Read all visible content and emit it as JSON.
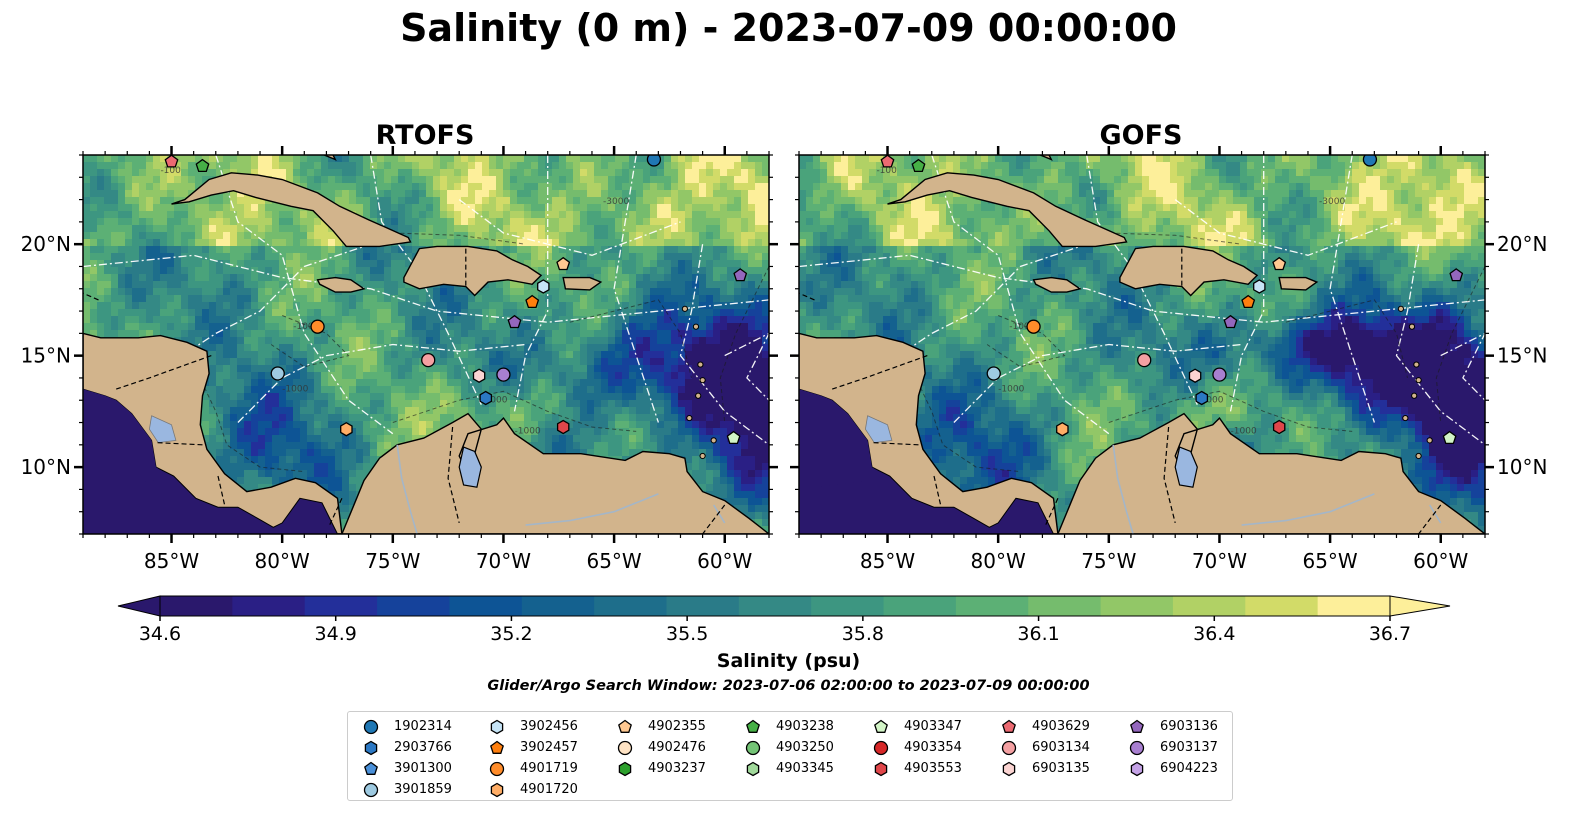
{
  "title": "Salinity (0 m) - 2023-07-09 00:00:00",
  "panels": [
    {
      "title": "RTOFS",
      "field": "rtofs"
    },
    {
      "title": "GOFS",
      "field": "gofs"
    }
  ],
  "axes": {
    "x_ticks": [
      "85°W",
      "80°W",
      "75°W",
      "70°W",
      "65°W",
      "60°W"
    ],
    "x_values": [
      -85,
      -80,
      -75,
      -70,
      -65,
      -60
    ],
    "y_ticks": [
      "10°N",
      "15°N",
      "20°N"
    ],
    "y_values": [
      10,
      15,
      20
    ],
    "lon_range": [
      -89,
      -58
    ],
    "lat_range": [
      7,
      24
    ],
    "contour_labels": [
      "-100",
      "-1000",
      "-3000"
    ]
  },
  "colorbar": {
    "label": "Salinity (psu)",
    "min": 34.6,
    "max": 36.7,
    "tick_values": [
      34.6,
      34.9,
      35.2,
      35.5,
      35.8,
      36.1,
      36.4,
      36.7
    ],
    "ticks": [
      "34.6",
      "34.9",
      "35.2",
      "35.5",
      "35.8",
      "36.1",
      "36.4",
      "36.7"
    ],
    "colormap": "haline",
    "extend": "both"
  },
  "search_window": "Glider/Argo Search Window: 2023-07-06 02:00:00 to 2023-07-09 00:00:00",
  "colors": {
    "land": "#d2b48c",
    "lakes": "#9ab7e0",
    "rivers": "#a4b6c8",
    "marker_edge": "#000000"
  },
  "legend": [
    {
      "id": "1902314",
      "marker": "circle",
      "color": "#1f77b4"
    },
    {
      "id": "2903766",
      "marker": "hexagon",
      "color": "#2b78c4"
    },
    {
      "id": "3901300",
      "marker": "pentagon",
      "color": "#4a90d9"
    },
    {
      "id": "3901859",
      "marker": "circle",
      "color": "#9ecae1"
    },
    {
      "id": "3902456",
      "marker": "hexagon",
      "color": "#c6e4f6"
    },
    {
      "id": "3902457",
      "marker": "pentagon",
      "color": "#ff7f0e"
    },
    {
      "id": "4901719",
      "marker": "circle",
      "color": "#ff8c2a"
    },
    {
      "id": "4901720",
      "marker": "hexagon",
      "color": "#ffad66"
    },
    {
      "id": "4902355",
      "marker": "pentagon",
      "color": "#ffc891"
    },
    {
      "id": "4902476",
      "marker": "circle",
      "color": "#ffe3c4"
    },
    {
      "id": "4903237",
      "marker": "hexagon",
      "color": "#2ca02c"
    },
    {
      "id": "4903238",
      "marker": "pentagon",
      "color": "#46b046"
    },
    {
      "id": "4903250",
      "marker": "circle",
      "color": "#74c476"
    },
    {
      "id": "4903345",
      "marker": "hexagon",
      "color": "#a1d99b"
    },
    {
      "id": "4903347",
      "marker": "pentagon",
      "color": "#d3f5c7"
    },
    {
      "id": "4903354",
      "marker": "circle",
      "color": "#d62728"
    },
    {
      "id": "4903553",
      "marker": "hexagon",
      "color": "#e0464a"
    },
    {
      "id": "4903629",
      "marker": "pentagon",
      "color": "#ec6a72"
    },
    {
      "id": "6903134",
      "marker": "circle",
      "color": "#f4a0a2"
    },
    {
      "id": "6903135",
      "marker": "hexagon",
      "color": "#fbd4d2"
    },
    {
      "id": "6903136",
      "marker": "pentagon",
      "color": "#9467bd"
    },
    {
      "id": "6903137",
      "marker": "circle",
      "color": "#a87fd0"
    },
    {
      "id": "6904223",
      "marker": "hexagon",
      "color": "#c4a2e6"
    }
  ],
  "platforms": [
    {
      "id": "4903629",
      "lon": -85,
      "lat": 23.7
    },
    {
      "id": "4903238",
      "lon": -83.6,
      "lat": 23.5
    },
    {
      "id": "1902314",
      "lon": -63.2,
      "lat": 23.8
    },
    {
      "id": "4902355",
      "lon": -67.3,
      "lat": 19.1
    },
    {
      "id": "6903136",
      "lon": -59.3,
      "lat": 18.6
    },
    {
      "id": "3902456",
      "lon": -68.2,
      "lat": 18.1
    },
    {
      "id": "3902457",
      "lon": -68.7,
      "lat": 17.4
    },
    {
      "id": "6903136",
      "lon": -69.5,
      "lat": 16.5
    },
    {
      "id": "4901719",
      "lon": -78.4,
      "lat": 16.3
    },
    {
      "id": "6903134",
      "lon": -73.4,
      "lat": 14.8
    },
    {
      "id": "3901859",
      "lon": -80.2,
      "lat": 14.2
    },
    {
      "id": "6903135",
      "lon": -71.1,
      "lat": 14.1
    },
    {
      "id": "6903137",
      "lon": -70.0,
      "lat": 14.15
    },
    {
      "id": "2903766",
      "lon": -70.8,
      "lat": 13.1
    },
    {
      "id": "4901720",
      "lon": -77.1,
      "lat": 11.7
    },
    {
      "id": "4903553",
      "lon": -67.3,
      "lat": 11.8
    },
    {
      "id": "4903347",
      "lon": -59.6,
      "lat": 11.3
    }
  ]
}
